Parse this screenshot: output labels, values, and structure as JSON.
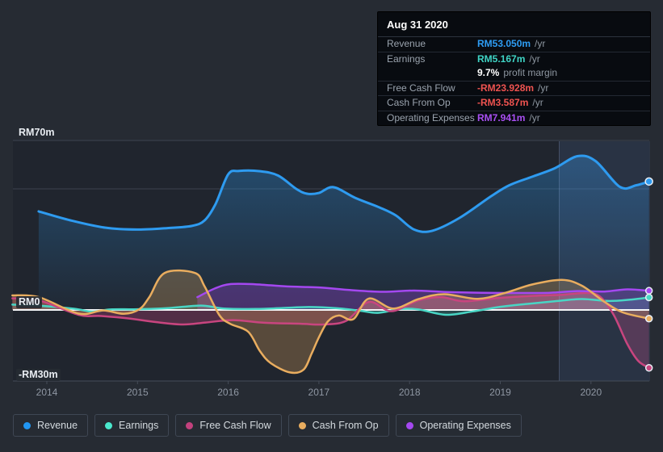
{
  "tooltip": {
    "date": "Aug 31 2020",
    "rows": [
      {
        "id": "revenue",
        "label": "Revenue",
        "value": "RM53.050m",
        "value_color": "#2e9df4",
        "unit": "/yr",
        "group_with_previous": false
      },
      {
        "id": "earnings",
        "label": "Earnings",
        "value": "RM5.167m",
        "value_color": "#3fd4c5",
        "unit": "/yr",
        "group_with_previous": false
      },
      {
        "id": "profit-margin",
        "label": "",
        "value": "9.7%",
        "value_color": "#ffffff",
        "unit": "profit margin",
        "group_with_previous": true
      },
      {
        "id": "free-cash-flow",
        "label": "Free Cash Flow",
        "value": "-RM23.928m",
        "value_color": "#ef5350",
        "unit": "/yr",
        "group_with_previous": false
      },
      {
        "id": "cash-from-op",
        "label": "Cash From Op",
        "value": "-RM3.587m",
        "value_color": "#ef5350",
        "unit": "/yr",
        "group_with_previous": false
      },
      {
        "id": "operating-expenses",
        "label": "Operating Expenses",
        "value": "RM7.941m",
        "value_color": "#a94ff2",
        "unit": "/yr",
        "group_with_previous": false
      }
    ]
  },
  "legend": [
    {
      "id": "revenue",
      "label": "Revenue",
      "color": "#2196f3"
    },
    {
      "id": "earnings",
      "label": "Earnings",
      "color": "#4ae8cd"
    },
    {
      "id": "free-cash-flow",
      "label": "Free Cash Flow",
      "color": "#c2417d"
    },
    {
      "id": "cash-from-op",
      "label": "Cash From Op",
      "color": "#e9ad5f"
    },
    {
      "id": "operating-expenses",
      "label": "Operating Expenses",
      "color": "#a448f0"
    }
  ],
  "colors": {
    "page_bg": "#262b33",
    "plot_bg": "#20252e",
    "gridline": "#3b414d",
    "zero_line": "#f5f7f9",
    "axis_line": "#454c58",
    "x_tick_text": "#8f97a3",
    "y_tick_text": "#e8ecf1",
    "highlight_band": "rgba(108,150,220,0.13)",
    "highlight_edge": "rgba(150,175,220,0.28)",
    "dot_ring": "#e8eef5"
  },
  "chart_data": {
    "type": "area",
    "title": "",
    "xlabel": "",
    "ylabel": "RM (millions)",
    "ylim": [
      -30,
      70
    ],
    "grid": "horizontal-partial",
    "legend_position": "bottom",
    "y_axis_labels": [
      {
        "text": "RM70m",
        "value": 70
      },
      {
        "text": "RM0",
        "value": 0
      },
      {
        "text": "-RM30m",
        "value": -30
      }
    ],
    "gridline_values": [
      70,
      50
    ],
    "x_ticks": [
      {
        "label": "2014",
        "year": 2014
      },
      {
        "label": "2015",
        "year": 2015
      },
      {
        "label": "2016",
        "year": 2016
      },
      {
        "label": "2017",
        "year": 2017
      },
      {
        "label": "2018",
        "year": 2018
      },
      {
        "label": "2019",
        "year": 2019
      },
      {
        "label": "2020",
        "year": 2020
      }
    ],
    "highlight_band": {
      "start_year": 2019.65,
      "end_year": 2020.65,
      "meaning": "trailing twelve months"
    },
    "series": [
      {
        "name": "Revenue",
        "color": "#2e9bf0",
        "line_width": 3,
        "fill": "gradient",
        "points": [
          [
            2013.91,
            40.7
          ],
          [
            2014.26,
            37
          ],
          [
            2014.64,
            34
          ],
          [
            2015.0,
            33.2
          ],
          [
            2015.33,
            33.8
          ],
          [
            2015.6,
            34.7
          ],
          [
            2015.74,
            37
          ],
          [
            2015.86,
            43.7
          ],
          [
            2016.0,
            56
          ],
          [
            2016.12,
            57.4
          ],
          [
            2016.35,
            57.3
          ],
          [
            2016.55,
            55.5
          ],
          [
            2016.75,
            50
          ],
          [
            2016.87,
            48
          ],
          [
            2017.0,
            48.3
          ],
          [
            2017.16,
            50.7
          ],
          [
            2017.4,
            46.3
          ],
          [
            2017.67,
            42.3
          ],
          [
            2017.85,
            39
          ],
          [
            2018.05,
            33.2
          ],
          [
            2018.25,
            32.7
          ],
          [
            2018.55,
            38
          ],
          [
            2018.9,
            47
          ],
          [
            2019.1,
            51.5
          ],
          [
            2019.35,
            55
          ],
          [
            2019.6,
            58.5
          ],
          [
            2019.85,
            63.5
          ],
          [
            2020.05,
            61.5
          ],
          [
            2020.32,
            50.8
          ],
          [
            2020.5,
            51.5
          ],
          [
            2020.64,
            53.05
          ]
        ]
      },
      {
        "name": "Earnings",
        "color": "#49d6c5",
        "line_width": 2.5,
        "fill": "flat",
        "fill_opacity": 0.22,
        "points": [
          [
            2013.62,
            2.2
          ],
          [
            2013.91,
            1.8
          ],
          [
            2014.3,
            0.5
          ],
          [
            2014.5,
            -0.7
          ],
          [
            2014.7,
            0.2
          ],
          [
            2015.0,
            0.3
          ],
          [
            2015.35,
            0.8
          ],
          [
            2015.7,
            1.8
          ],
          [
            2015.95,
            0.6
          ],
          [
            2016.3,
            0.4
          ],
          [
            2016.6,
            0.8
          ],
          [
            2016.9,
            1.2
          ],
          [
            2017.2,
            0.7
          ],
          [
            2017.45,
            -0.3
          ],
          [
            2017.65,
            -1.2
          ],
          [
            2017.9,
            0.4
          ],
          [
            2018.1,
            0.2
          ],
          [
            2018.4,
            -2
          ],
          [
            2018.7,
            -0.6
          ],
          [
            2019.0,
            1.3
          ],
          [
            2019.3,
            2.5
          ],
          [
            2019.6,
            3.6
          ],
          [
            2019.9,
            4.5
          ],
          [
            2020.2,
            3.7
          ],
          [
            2020.45,
            4.3
          ],
          [
            2020.64,
            5.167
          ]
        ]
      },
      {
        "name": "Free Cash Flow",
        "color": "#c8457f",
        "line_width": 2.5,
        "fill": "flat",
        "fill_opacity": 0.3,
        "points": [
          [
            2013.62,
            4.8
          ],
          [
            2013.91,
            4
          ],
          [
            2014.35,
            -2
          ],
          [
            2014.6,
            -2.5
          ],
          [
            2014.9,
            -3.5
          ],
          [
            2015.2,
            -5
          ],
          [
            2015.5,
            -6
          ],
          [
            2015.75,
            -5.2
          ],
          [
            2016.05,
            -4.2
          ],
          [
            2016.4,
            -5.3
          ],
          [
            2016.8,
            -5.7
          ],
          [
            2017.05,
            -6
          ],
          [
            2017.3,
            -4.5
          ],
          [
            2017.55,
            3.3
          ],
          [
            2017.8,
            -0.5
          ],
          [
            2018.1,
            4
          ],
          [
            2018.35,
            5.3
          ],
          [
            2018.6,
            3.6
          ],
          [
            2019.0,
            5
          ],
          [
            2019.35,
            5.8
          ],
          [
            2019.7,
            6.3
          ],
          [
            2019.95,
            7
          ],
          [
            2020.1,
            5.5
          ],
          [
            2020.25,
            -2
          ],
          [
            2020.4,
            -14
          ],
          [
            2020.52,
            -21
          ],
          [
            2020.64,
            -23.928
          ]
        ]
      },
      {
        "name": "Operating Expenses",
        "color": "#a448f0",
        "line_width": 2.5,
        "fill": "flat",
        "fill_opacity": 0.3,
        "points": [
          [
            2015.66,
            5.3
          ],
          [
            2015.86,
            9
          ],
          [
            2016.03,
            10.7
          ],
          [
            2016.3,
            10.6
          ],
          [
            2016.65,
            9.7
          ],
          [
            2017.0,
            9.3
          ],
          [
            2017.35,
            8.2
          ],
          [
            2017.7,
            7.5
          ],
          [
            2018.05,
            8
          ],
          [
            2018.4,
            7.4
          ],
          [
            2018.8,
            7.1
          ],
          [
            2019.2,
            7
          ],
          [
            2019.55,
            7.1
          ],
          [
            2019.85,
            7.8
          ],
          [
            2020.15,
            7.6
          ],
          [
            2020.4,
            8.5
          ],
          [
            2020.64,
            7.941
          ]
        ]
      },
      {
        "name": "Cash From Op",
        "color": "#e9ad5f",
        "line_width": 2.5,
        "fill": "flat",
        "fill_opacity": 0.28,
        "points": [
          [
            2013.62,
            6
          ],
          [
            2013.91,
            5.3
          ],
          [
            2014.35,
            -1.5
          ],
          [
            2014.62,
            -0.2
          ],
          [
            2014.85,
            -1.6
          ],
          [
            2015.02,
            0.3
          ],
          [
            2015.13,
            5.3
          ],
          [
            2015.3,
            15.3
          ],
          [
            2015.63,
            15.3
          ],
          [
            2015.74,
            9.7
          ],
          [
            2015.9,
            -2
          ],
          [
            2016.02,
            -5.7
          ],
          [
            2016.22,
            -9
          ],
          [
            2016.35,
            -17
          ],
          [
            2016.47,
            -22
          ],
          [
            2016.68,
            -25.8
          ],
          [
            2016.83,
            -24.7
          ],
          [
            2016.92,
            -18
          ],
          [
            2017.0,
            -11.3
          ],
          [
            2017.1,
            -4.7
          ],
          [
            2017.22,
            -2.3
          ],
          [
            2017.38,
            -3.8
          ],
          [
            2017.55,
            4.7
          ],
          [
            2017.82,
            0.6
          ],
          [
            2018.1,
            4.5
          ],
          [
            2018.38,
            6.5
          ],
          [
            2018.75,
            4.6
          ],
          [
            2019.05,
            7
          ],
          [
            2019.35,
            10.5
          ],
          [
            2019.68,
            12.4
          ],
          [
            2019.9,
            10
          ],
          [
            2020.15,
            3.3
          ],
          [
            2020.35,
            -1
          ],
          [
            2020.64,
            -3.587
          ]
        ]
      }
    ]
  }
}
